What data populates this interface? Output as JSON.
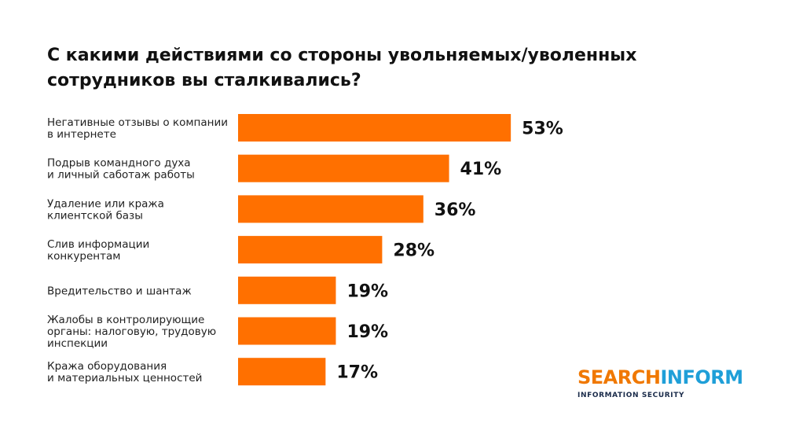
{
  "chart_data": {
    "type": "bar",
    "orientation": "horizontal",
    "title": "С какими действиями со стороны увольняемых/уволенных сотрудников вы сталкивались?",
    "categories": [
      [
        "Негативные отзывы о компании",
        "в интернете"
      ],
      [
        "Подрыв командного духа",
        "и личный саботаж работы"
      ],
      [
        "Удаление или кража",
        "клиентской базы"
      ],
      [
        "Слив информации",
        "конкурентам"
      ],
      [
        "Вредительство и шантаж"
      ],
      [
        "Жалобы в контролирующие",
        "органы: налоговую, трудовую",
        "инспекции"
      ],
      [
        "Кража оборудования",
        "и материальных ценностей"
      ]
    ],
    "values": [
      53,
      41,
      36,
      28,
      19,
      19,
      17
    ],
    "value_labels": [
      "53%",
      "41%",
      "36%",
      "28%",
      "19%",
      "19%",
      "17%"
    ],
    "unit": "%",
    "bar_color": "#ff7000",
    "grid": false,
    "legend": "none"
  },
  "logo": {
    "part1": "SEARCH",
    "part2": "INFORM",
    "tagline": "INFORMATION SECURITY",
    "color1": "#f07800",
    "color2": "#1f9fd8"
  }
}
